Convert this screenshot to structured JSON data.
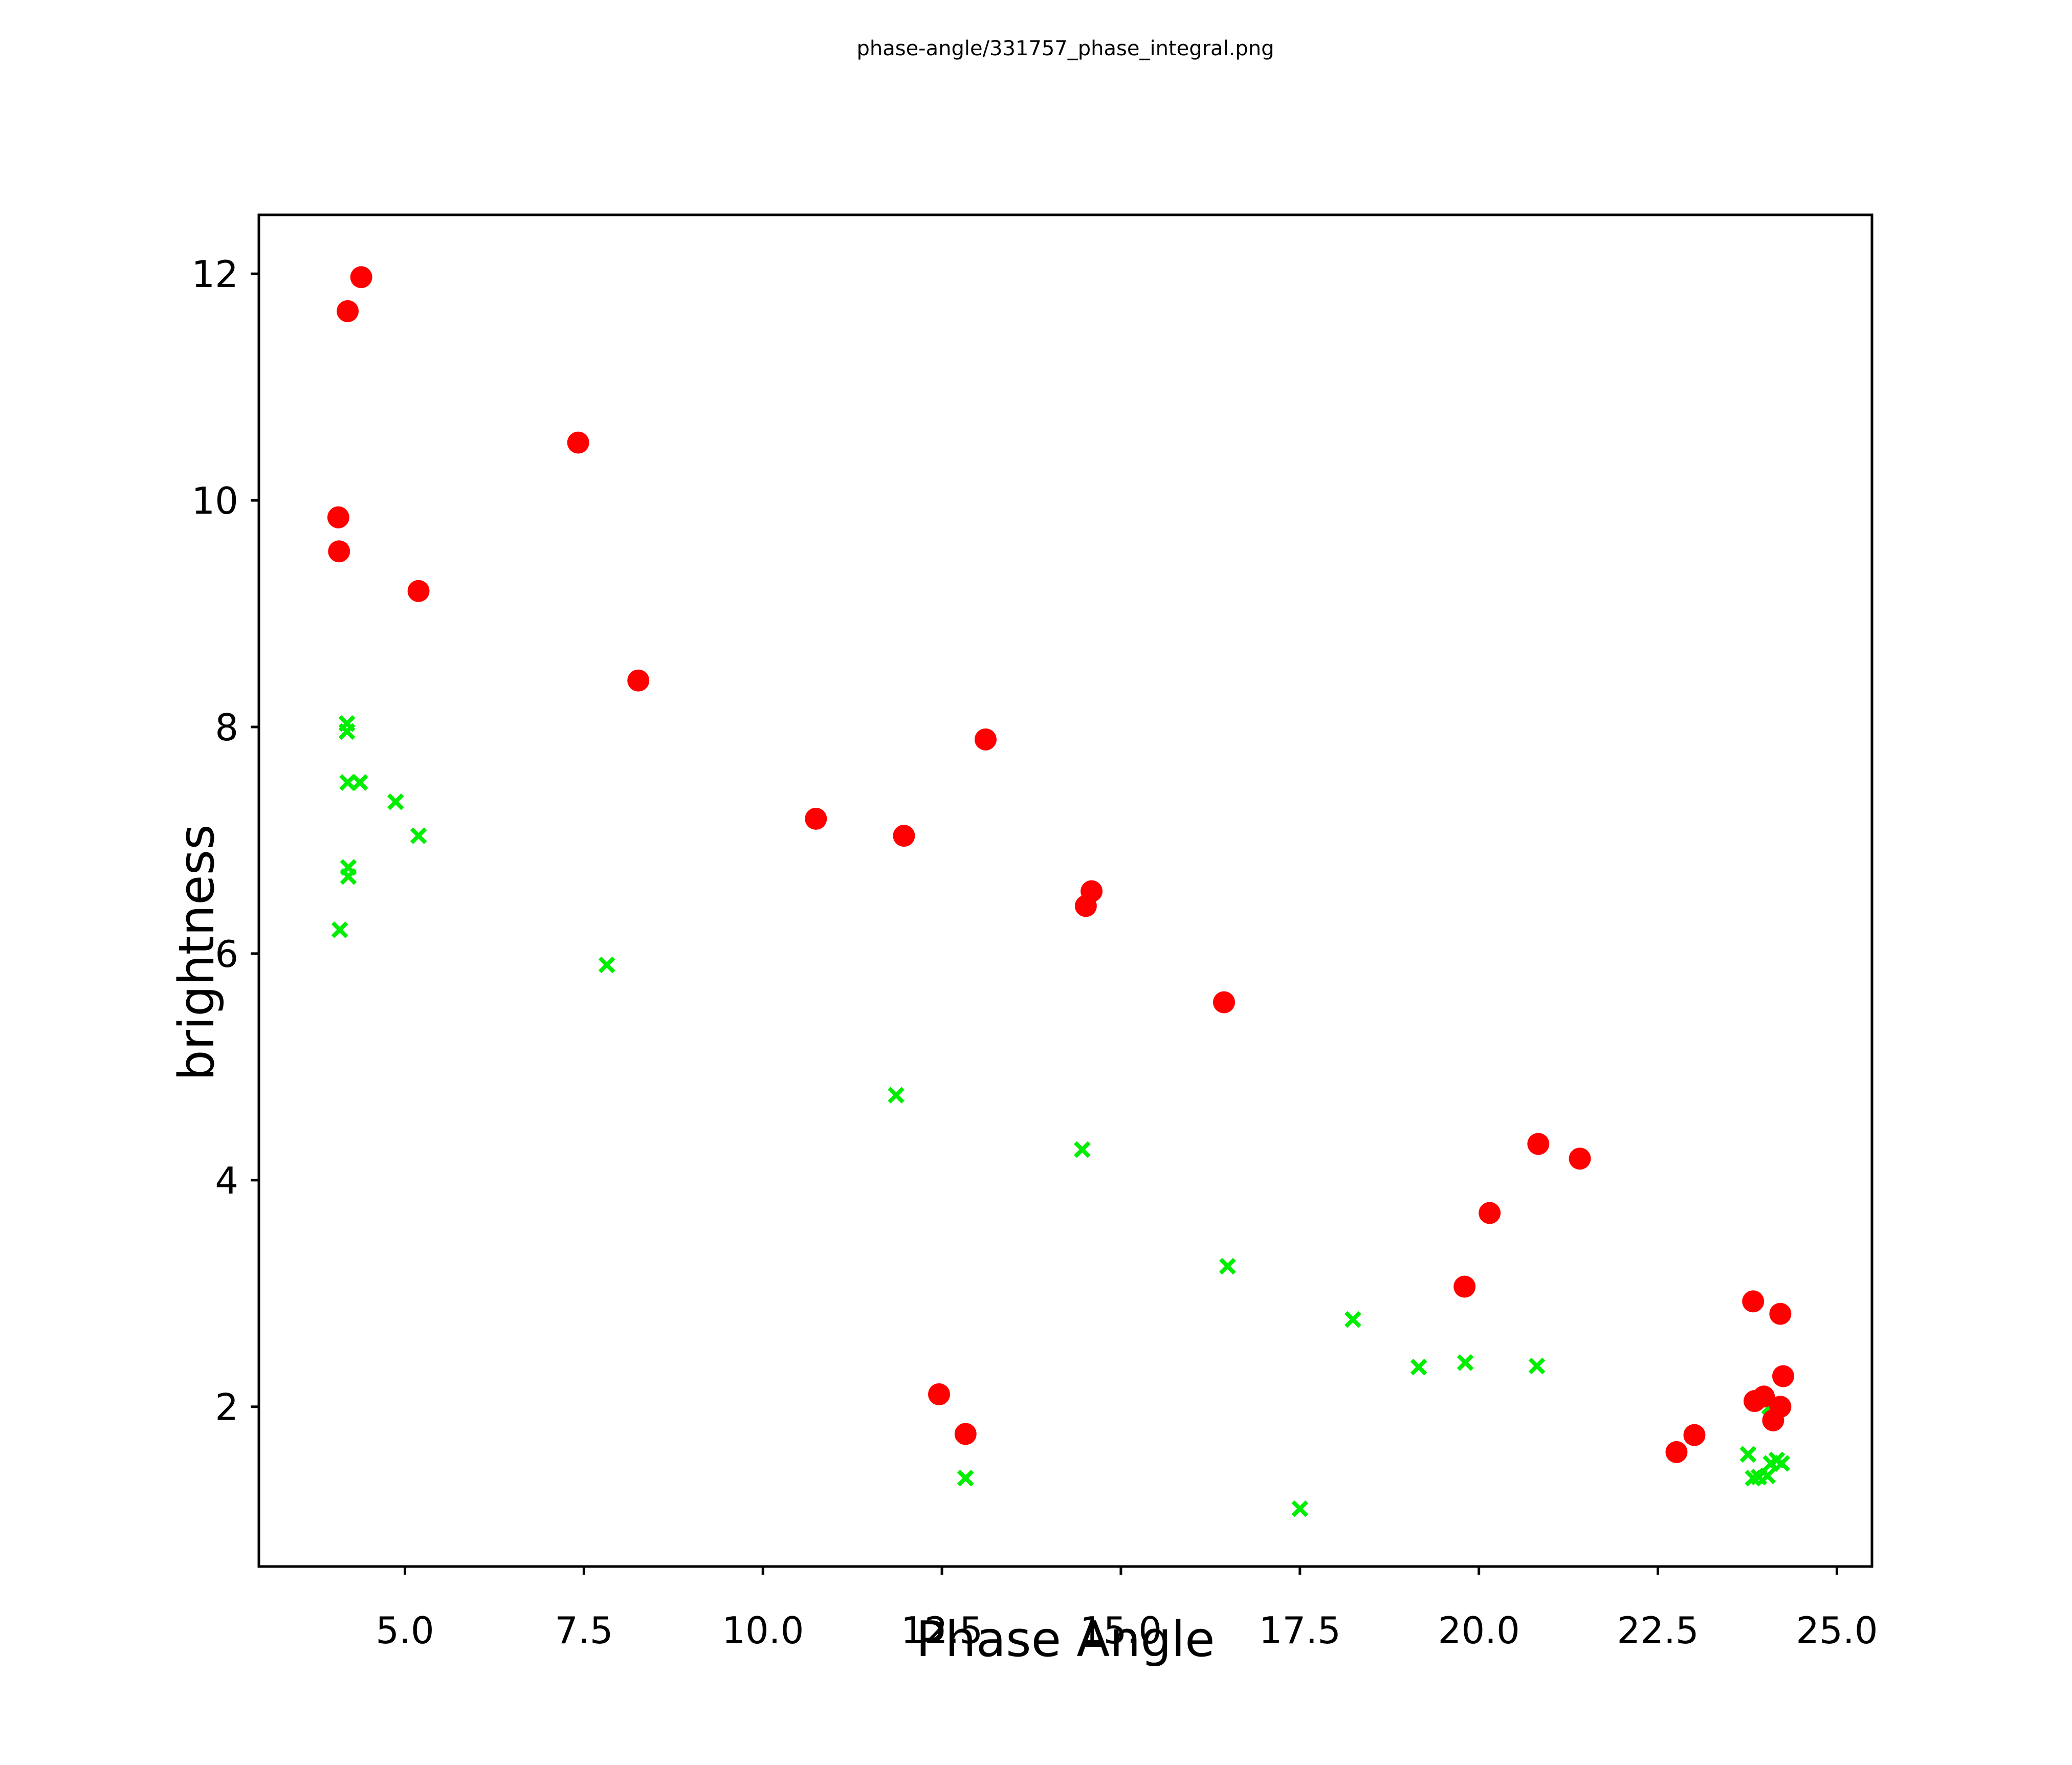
{
  "figure": {
    "title": "phase-angle/331757_phase_integral.png",
    "background_color": "#ffffff",
    "axis_color": "#000000"
  },
  "chart_data": {
    "type": "scatter",
    "title": "phase-angle/331757_phase_integral.png",
    "xlabel": "Phase Angle",
    "ylabel": "brightness",
    "xlim": [
      2.96,
      25.49
    ],
    "ylim": [
      0.59,
      12.52
    ],
    "grid": false,
    "legend_position": "none",
    "x_ticks": [
      {
        "value": 5.0,
        "label": "5.0"
      },
      {
        "value": 7.5,
        "label": "7.5"
      },
      {
        "value": 10.0,
        "label": "10.0"
      },
      {
        "value": 12.5,
        "label": "12.5"
      },
      {
        "value": 15.0,
        "label": "15.0"
      },
      {
        "value": 17.5,
        "label": "17.5"
      },
      {
        "value": 20.0,
        "label": "20.0"
      },
      {
        "value": 22.5,
        "label": "22.5"
      },
      {
        "value": 25.0,
        "label": "25.0"
      }
    ],
    "y_ticks": [
      {
        "value": 2,
        "label": "2"
      },
      {
        "value": 4,
        "label": "4"
      },
      {
        "value": 6,
        "label": "6"
      },
      {
        "value": 8,
        "label": "8"
      },
      {
        "value": 10,
        "label": "10"
      },
      {
        "value": 12,
        "label": "12"
      }
    ],
    "series": [
      {
        "name": "green-crosses",
        "marker": "x",
        "color": "#00ee00",
        "marker_size": 27,
        "stroke_width": 8,
        "points": [
          [
            4.19,
            8.03
          ],
          [
            4.19,
            7.96
          ],
          [
            4.2,
            7.51
          ],
          [
            4.37,
            7.51
          ],
          [
            4.87,
            7.34
          ],
          [
            5.19,
            7.04
          ],
          [
            4.21,
            6.76
          ],
          [
            4.21,
            6.68
          ],
          [
            4.09,
            6.21
          ],
          [
            7.82,
            5.9
          ],
          [
            11.86,
            4.75
          ],
          [
            14.46,
            4.27
          ],
          [
            16.49,
            3.24
          ],
          [
            18.24,
            2.77
          ],
          [
            19.16,
            2.35
          ],
          [
            19.81,
            2.39
          ],
          [
            20.81,
            2.36
          ],
          [
            17.5,
            1.1
          ],
          [
            12.83,
            1.37
          ],
          [
            24.06,
            2.0
          ],
          [
            23.76,
            1.58
          ],
          [
            24.08,
            1.5
          ],
          [
            24.16,
            1.53
          ],
          [
            24.23,
            1.5
          ],
          [
            23.83,
            1.37
          ],
          [
            23.91,
            1.38
          ],
          [
            24.03,
            1.39
          ]
        ]
      },
      {
        "name": "red-circles",
        "marker": "circle",
        "color": "#ff0000",
        "marker_size": 43,
        "stroke_width": 0,
        "points": [
          [
            4.39,
            11.97
          ],
          [
            4.2,
            11.67
          ],
          [
            7.42,
            10.51
          ],
          [
            4.07,
            9.85
          ],
          [
            4.08,
            9.55
          ],
          [
            5.19,
            9.2
          ],
          [
            8.26,
            8.41
          ],
          [
            10.74,
            7.19
          ],
          [
            11.97,
            7.04
          ],
          [
            13.11,
            7.89
          ],
          [
            14.59,
            6.55
          ],
          [
            14.51,
            6.42
          ],
          [
            16.44,
            5.57
          ],
          [
            19.8,
            3.06
          ],
          [
            20.15,
            3.71
          ],
          [
            20.83,
            4.32
          ],
          [
            21.41,
            4.19
          ],
          [
            12.46,
            2.11
          ],
          [
            12.83,
            1.76
          ],
          [
            22.76,
            1.6
          ],
          [
            23.01,
            1.75
          ],
          [
            23.83,
            2.93
          ],
          [
            24.21,
            2.82
          ],
          [
            24.25,
            2.27
          ],
          [
            23.85,
            2.05
          ],
          [
            23.98,
            2.09
          ],
          [
            24.21,
            2.0
          ],
          [
            24.11,
            1.88
          ]
        ]
      }
    ]
  }
}
